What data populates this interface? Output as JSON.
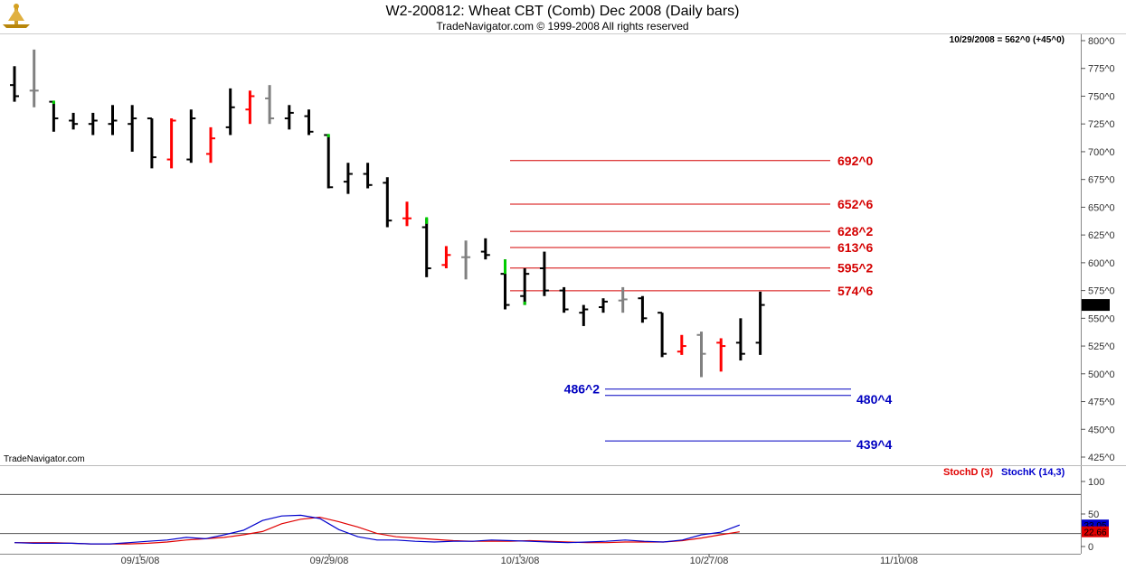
{
  "chart_data": {
    "type": "ohlc",
    "title": "W2-200812:  Wheat CBT (Comb) Dec 2008  (Daily bars)",
    "subtitle": "TradeNavigator.com © 1999-2008 All rights reserved",
    "header_readout": "10/29/2008 = 562^0 (+45^0)",
    "watermark": "TradeNavigator.com",
    "last_price_label": "562^0",
    "price_axis": {
      "ylim": [
        415,
        805
      ],
      "ticks": [
        800,
        775,
        750,
        725,
        700,
        675,
        650,
        625,
        600,
        575,
        550,
        525,
        500,
        475,
        450,
        425
      ],
      "tick_suffix": "^0"
    },
    "x_axis": {
      "date_labels": [
        {
          "label": "09/15/08",
          "index": 18
        },
        {
          "label": "09/29/08",
          "index": 25
        },
        {
          "label": "10/13/08",
          "index": 32
        },
        {
          "label": "10/27/08",
          "index": 42
        },
        {
          "label": "11/10/08",
          "index": 52
        }
      ]
    },
    "bars": [
      {
        "i": 0,
        "o": 760,
        "h": 777,
        "l": 745,
        "c": 750,
        "col": "#000000"
      },
      {
        "i": 1,
        "o": 755,
        "h": 792,
        "l": 740,
        "c": 755,
        "col": "#808080"
      },
      {
        "i": 2,
        "o": 745,
        "h": 745,
        "l": 718,
        "c": 730,
        "col": "#000000"
      },
      {
        "i": 3,
        "o": 728,
        "h": 735,
        "l": 720,
        "c": 725,
        "col": "#000000"
      },
      {
        "i": 4,
        "o": 725,
        "h": 735,
        "l": 715,
        "c": 728,
        "col": "#000000"
      },
      {
        "i": 5,
        "o": 725,
        "h": 742,
        "l": 715,
        "c": 728,
        "col": "#000000"
      },
      {
        "i": 6,
        "o": 725,
        "h": 742,
        "l": 700,
        "c": 730,
        "col": "#000000"
      },
      {
        "i": 7,
        "o": 730,
        "h": 730,
        "l": 685,
        "c": 695,
        "col": "#000000"
      },
      {
        "i": 8,
        "o": 693,
        "h": 730,
        "l": 685,
        "c": 728,
        "col": "#ff0000"
      },
      {
        "i": 9,
        "o": 693,
        "h": 738,
        "l": 690,
        "c": 730,
        "col": "#000000"
      },
      {
        "i": 10,
        "o": 698,
        "h": 722,
        "l": 690,
        "c": 712,
        "col": "#ff0000"
      },
      {
        "i": 11,
        "o": 722,
        "h": 757,
        "l": 715,
        "c": 740,
        "col": "#000000"
      },
      {
        "i": 12,
        "o": 738,
        "h": 755,
        "l": 725,
        "c": 750,
        "col": "#ff0000"
      },
      {
        "i": 13,
        "o": 748,
        "h": 760,
        "l": 725,
        "c": 730,
        "col": "#808080"
      },
      {
        "i": 14,
        "o": 730,
        "h": 742,
        "l": 720,
        "c": 735,
        "col": "#000000"
      },
      {
        "i": 15,
        "o": 732,
        "h": 738,
        "l": 715,
        "c": 718,
        "col": "#000000"
      },
      {
        "i": 16,
        "o": 715,
        "h": 715,
        "l": 667,
        "c": 668,
        "col": "#000000"
      },
      {
        "i": 17,
        "o": 673,
        "h": 690,
        "l": 662,
        "c": 680,
        "col": "#000000"
      },
      {
        "i": 18,
        "o": 680,
        "h": 690,
        "l": 667,
        "c": 670,
        "col": "#000000"
      },
      {
        "i": 19,
        "o": 672,
        "h": 677,
        "l": 632,
        "c": 638,
        "col": "#000000"
      },
      {
        "i": 20,
        "o": 640,
        "h": 655,
        "l": 633,
        "c": 640,
        "col": "#ff0000"
      },
      {
        "i": 21,
        "o": 632,
        "h": 640,
        "l": 587,
        "c": 595,
        "col": "#000000"
      },
      {
        "i": 22,
        "o": 598,
        "h": 615,
        "l": 595,
        "c": 607,
        "col": "#ff0000"
      },
      {
        "i": 23,
        "o": 605,
        "h": 620,
        "l": 585,
        "c": 605,
        "col": "#808080"
      },
      {
        "i": 24,
        "o": 610,
        "h": 622,
        "l": 603,
        "c": 607,
        "col": "#000000"
      },
      {
        "i": 25,
        "o": 590,
        "h": 603,
        "l": 558,
        "c": 562,
        "col": "#000000"
      },
      {
        "i": 26,
        "o": 570,
        "h": 595,
        "l": 562,
        "c": 590,
        "col": "#000000"
      },
      {
        "i": 27,
        "o": 595,
        "h": 610,
        "l": 570,
        "c": 575,
        "col": "#000000"
      },
      {
        "i": 28,
        "o": 575,
        "h": 578,
        "l": 555,
        "c": 558,
        "col": "#000000"
      },
      {
        "i": 29,
        "o": 555,
        "h": 562,
        "l": 543,
        "c": 558,
        "col": "#000000"
      },
      {
        "i": 30,
        "o": 560,
        "h": 568,
        "l": 555,
        "c": 565,
        "col": "#000000"
      },
      {
        "i": 31,
        "o": 566,
        "h": 578,
        "l": 555,
        "c": 567,
        "col": "#808080"
      },
      {
        "i": 32,
        "o": 568,
        "h": 570,
        "l": 546,
        "c": 550,
        "col": "#000000"
      },
      {
        "i": 33,
        "o": 555,
        "h": 555,
        "l": 515,
        "c": 518,
        "col": "#000000"
      },
      {
        "i": 34,
        "o": 520,
        "h": 535,
        "l": 517,
        "c": 525,
        "col": "#ff0000"
      },
      {
        "i": 35,
        "o": 535,
        "h": 538,
        "l": 497,
        "c": 518,
        "col": "#808080"
      },
      {
        "i": 36,
        "o": 528,
        "h": 532,
        "l": 502,
        "c": 525,
        "col": "#ff0000"
      },
      {
        "i": 37,
        "o": 528,
        "h": 550,
        "l": 512,
        "c": 518,
        "col": "#000000"
      },
      {
        "i": 38,
        "o": 528,
        "h": 574,
        "l": 517,
        "c": 562,
        "col": "#000000"
      }
    ],
    "green_ticks": [
      {
        "i": 2,
        "h": 746,
        "l": 743
      },
      {
        "i": 16,
        "h": 716,
        "l": 713
      },
      {
        "i": 21,
        "h": 641,
        "l": 635
      },
      {
        "i": 25,
        "h": 603,
        "l": 590
      },
      {
        "i": 26,
        "h": 565,
        "l": 562
      }
    ],
    "resistance_levels": [
      {
        "label": "692^0",
        "value": 692
      },
      {
        "label": "652^6",
        "value": 652.75
      },
      {
        "label": "628^2",
        "value": 628.25
      },
      {
        "label": "613^6",
        "value": 613.75
      },
      {
        "label": "595^2",
        "value": 595.25
      },
      {
        "label": "574^6",
        "value": 574.75
      }
    ],
    "support_levels": [
      {
        "label": "486^2",
        "value": 486.25,
        "label_side": "left"
      },
      {
        "label": "480^4",
        "value": 480.5,
        "label_side": "right"
      },
      {
        "label": "439^4",
        "value": 439.5,
        "label_side": "right"
      }
    ],
    "stochastic": {
      "ylim": [
        0,
        100
      ],
      "ticks": [
        100,
        50,
        0
      ],
      "reference_levels": [
        80,
        20
      ],
      "stochD": {
        "label": "StochD (3)",
        "color": "#e00000",
        "last": "22.66",
        "values": [
          6,
          6,
          6,
          5,
          4,
          4,
          4,
          5,
          7,
          10,
          12,
          14,
          18,
          23,
          35,
          42,
          45,
          38,
          30,
          20,
          15,
          13,
          11,
          9,
          8,
          8,
          8,
          9,
          8,
          7,
          6,
          6,
          7,
          7,
          7,
          9,
          13,
          18,
          22.66
        ]
      },
      "stochK": {
        "label": "StochK (14,3)",
        "color": "#0000cc",
        "last": "33.05",
        "values": [
          6,
          5,
          5,
          5,
          4,
          4,
          6,
          8,
          10,
          14,
          12,
          18,
          25,
          40,
          47,
          48,
          43,
          26,
          15,
          10,
          10,
          8,
          7,
          8,
          8,
          10,
          9,
          8,
          7,
          6,
          7,
          8,
          10,
          8,
          7,
          10,
          18,
          22,
          33.05
        ]
      }
    }
  }
}
